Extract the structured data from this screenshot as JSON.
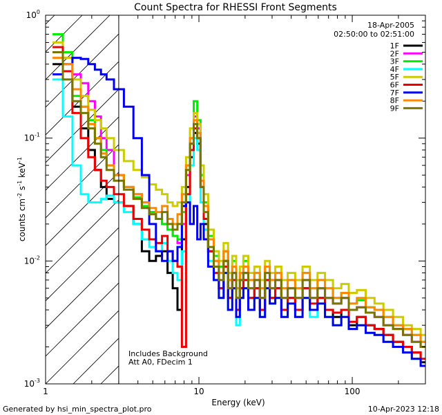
{
  "chart_data": {
    "type": "line",
    "title": "Count Spectra for RHESSI Front Segments",
    "xlabel": "Energy (keV)",
    "ylabel_base": "counts cm",
    "ylabel_exp1": "-2",
    "ylabel_mid": " s",
    "ylabel_exp2": "-1",
    "ylabel_end": " keV",
    "ylabel_exp3": "-1",
    "xscale": "log",
    "yscale": "log",
    "xlim": [
      1.0,
      300.0
    ],
    "ylim": [
      0.001,
      1.0
    ],
    "x_ticks": [
      {
        "value": 1,
        "label": "1"
      },
      {
        "value": 10,
        "label": "10"
      },
      {
        "value": 100,
        "label": "100"
      }
    ],
    "y_ticks": [
      {
        "value": 1.0,
        "base": "10",
        "exp": "0"
      },
      {
        "value": 0.1,
        "base": "10",
        "exp": "-1"
      },
      {
        "value": 0.01,
        "base": "10",
        "exp": "-2"
      },
      {
        "value": 0.001,
        "base": "10",
        "exp": "-3"
      }
    ],
    "hatched_region_x": [
      1.0,
      3.0
    ],
    "date": "18-Apr-2005",
    "time_range": "02:50:00 to 02:51:00",
    "annotation_line1": "Includes Background",
    "annotation_line2": "Att A0, FDecim 1",
    "energy_keV": [
      1.2,
      1.4,
      1.6,
      1.8,
      2.0,
      2.2,
      2.4,
      2.6,
      3.0,
      3.5,
      4.0,
      4.5,
      5.0,
      5.5,
      6.0,
      6.5,
      7.0,
      7.5,
      8.0,
      8.5,
      9.0,
      9.5,
      10.0,
      10.5,
      11.0,
      12.0,
      13.0,
      14.0,
      15.0,
      16.0,
      17.0,
      18.0,
      19.0,
      20.0,
      22.0,
      24.0,
      26.0,
      28.0,
      30.0,
      33.0,
      36.0,
      40.0,
      45.0,
      50.0,
      56.0,
      63.0,
      70.0,
      80.0,
      90.0,
      100.0,
      115.0,
      130.0,
      150.0,
      170.0,
      200.0,
      230.0,
      260.0,
      300.0
    ],
    "series": [
      {
        "name": "1F",
        "color": "#000000",
        "values": [
          0.4,
          0.35,
          0.18,
          0.12,
          0.08,
          0.055,
          0.04,
          0.032,
          0.03,
          0.028,
          0.02,
          0.012,
          0.01,
          0.011,
          0.012,
          0.008,
          0.006,
          0.004,
          0.015,
          0.04,
          0.07,
          0.11,
          0.09,
          0.04,
          0.02,
          0.012,
          0.008,
          0.006,
          0.01,
          0.005,
          0.008,
          0.004,
          0.006,
          0.008,
          0.005,
          0.006,
          0.004,
          0.007,
          0.005,
          0.006,
          0.004,
          0.005,
          0.004,
          0.006,
          0.004,
          0.005,
          0.004,
          0.0035,
          0.004,
          0.003,
          0.0035,
          0.003,
          0.0028,
          0.0025,
          0.0022,
          0.002,
          0.0018,
          0.0015
        ]
      },
      {
        "name": "2F",
        "color": "#ff00ff",
        "values": [
          0.5,
          0.45,
          0.33,
          0.28,
          0.2,
          0.15,
          0.1,
          0.08,
          0.05,
          0.04,
          0.035,
          0.03,
          0.025,
          0.022,
          0.02,
          0.018,
          0.016,
          0.014,
          0.02,
          0.05,
          0.09,
          0.15,
          0.12,
          0.05,
          0.03,
          0.015,
          0.01,
          0.008,
          0.012,
          0.006,
          0.009,
          0.005,
          0.007,
          0.009,
          0.006,
          0.007,
          0.005,
          0.008,
          0.006,
          0.007,
          0.005,
          0.006,
          0.005,
          0.007,
          0.005,
          0.006,
          0.005,
          0.0045,
          0.005,
          0.004,
          0.0042,
          0.0038,
          0.0035,
          0.003,
          0.0028,
          0.0025,
          0.0022,
          0.002
        ]
      },
      {
        "name": "3F",
        "color": "#00ee00",
        "values": [
          0.7,
          0.5,
          0.22,
          0.18,
          0.14,
          0.1,
          0.08,
          0.06,
          0.05,
          0.04,
          0.033,
          0.028,
          0.025,
          0.022,
          0.02,
          0.018,
          0.016,
          0.015,
          0.025,
          0.06,
          0.1,
          0.2,
          0.14,
          0.05,
          0.03,
          0.016,
          0.011,
          0.009,
          0.012,
          0.007,
          0.01,
          0.006,
          0.008,
          0.01,
          0.007,
          0.008,
          0.006,
          0.009,
          0.007,
          0.008,
          0.006,
          0.007,
          0.006,
          0.008,
          0.006,
          0.007,
          0.006,
          0.005,
          0.0055,
          0.0045,
          0.0048,
          0.0042,
          0.004,
          0.0035,
          0.003,
          0.0028,
          0.0025,
          0.0022
        ]
      },
      {
        "name": "4F",
        "color": "#00ffff",
        "values": [
          0.3,
          0.15,
          0.06,
          0.035,
          0.03,
          0.03,
          0.032,
          0.034,
          0.03,
          0.025,
          0.02,
          0.015,
          0.013,
          0.012,
          0.014,
          0.01,
          0.008,
          0.007,
          0.012,
          0.03,
          0.06,
          0.1,
          0.08,
          0.03,
          0.018,
          0.01,
          0.007,
          0.005,
          0.008,
          0.004,
          0.006,
          0.003,
          0.005,
          0.006,
          0.004,
          0.005,
          0.0035,
          0.006,
          0.0045,
          0.005,
          0.0035,
          0.0045,
          0.0035,
          0.005,
          0.0035,
          0.0045,
          0.0035,
          0.003,
          0.0035,
          0.0028,
          0.003,
          0.0026,
          0.0025,
          0.0022,
          0.002,
          0.0018,
          0.0016,
          0.0014
        ]
      },
      {
        "name": "5F",
        "color": "#cccc00",
        "values": [
          0.6,
          0.45,
          0.3,
          0.22,
          0.17,
          0.14,
          0.12,
          0.1,
          0.08,
          0.065,
          0.055,
          0.048,
          0.042,
          0.038,
          0.035,
          0.03,
          0.028,
          0.03,
          0.04,
          0.07,
          0.12,
          0.16,
          0.13,
          0.06,
          0.035,
          0.018,
          0.012,
          0.01,
          0.014,
          0.008,
          0.011,
          0.007,
          0.009,
          0.011,
          0.008,
          0.009,
          0.007,
          0.01,
          0.008,
          0.009,
          0.007,
          0.008,
          0.007,
          0.009,
          0.007,
          0.008,
          0.007,
          0.006,
          0.0065,
          0.0055,
          0.0058,
          0.005,
          0.0045,
          0.004,
          0.0035,
          0.003,
          0.0028,
          0.0025
        ]
      },
      {
        "name": "6F",
        "color": "#ee0000",
        "values": [
          0.55,
          0.35,
          0.16,
          0.1,
          0.07,
          0.055,
          0.045,
          0.04,
          0.035,
          0.028,
          0.022,
          0.018,
          0.015,
          0.014,
          0.016,
          0.012,
          0.01,
          0.009,
          0.002,
          0.035,
          0.08,
          0.12,
          0.1,
          0.04,
          0.022,
          0.012,
          0.008,
          0.006,
          0.009,
          0.005,
          0.007,
          0.004,
          0.006,
          0.007,
          0.005,
          0.006,
          0.004,
          0.007,
          0.005,
          0.006,
          0.004,
          0.005,
          0.004,
          0.006,
          0.0045,
          0.005,
          0.004,
          0.0038,
          0.004,
          0.0032,
          0.0035,
          0.003,
          0.0028,
          0.0025,
          0.0022,
          0.002,
          0.0018,
          0.0016
        ]
      },
      {
        "name": "7F",
        "color": "#0000ee",
        "values": [
          0.33,
          0.4,
          0.45,
          0.44,
          0.4,
          0.36,
          0.33,
          0.3,
          0.25,
          0.18,
          0.1,
          0.05,
          0.02,
          0.012,
          0.01,
          0.012,
          0.01,
          0.013,
          0.028,
          0.03,
          0.02,
          0.028,
          0.015,
          0.02,
          0.015,
          0.009,
          0.007,
          0.005,
          0.008,
          0.004,
          0.006,
          0.0035,
          0.005,
          0.006,
          0.004,
          0.005,
          0.0035,
          0.006,
          0.0045,
          0.005,
          0.0035,
          0.0045,
          0.0035,
          0.005,
          0.004,
          0.0045,
          0.0035,
          0.003,
          0.0035,
          0.0028,
          0.003,
          0.0026,
          0.0025,
          0.0022,
          0.002,
          0.0018,
          0.0016,
          0.0014
        ]
      },
      {
        "name": "8F",
        "color": "#ff8800",
        "values": [
          0.45,
          0.4,
          0.25,
          0.18,
          0.13,
          0.1,
          0.075,
          0.06,
          0.05,
          0.04,
          0.035,
          0.03,
          0.027,
          0.025,
          0.028,
          0.022,
          0.02,
          0.024,
          0.035,
          0.06,
          0.1,
          0.14,
          0.11,
          0.045,
          0.028,
          0.015,
          0.01,
          0.008,
          0.012,
          0.007,
          0.009,
          0.006,
          0.008,
          0.009,
          0.007,
          0.008,
          0.006,
          0.009,
          0.007,
          0.008,
          0.006,
          0.007,
          0.006,
          0.008,
          0.006,
          0.007,
          0.006,
          0.005,
          0.0055,
          0.0045,
          0.005,
          0.0042,
          0.004,
          0.0035,
          0.003,
          0.0028,
          0.0025,
          0.0022
        ]
      },
      {
        "name": "9F",
        "color": "#777700",
        "values": [
          0.5,
          0.3,
          0.2,
          0.16,
          0.12,
          0.09,
          0.07,
          0.055,
          0.045,
          0.038,
          0.032,
          0.027,
          0.024,
          0.022,
          0.025,
          0.02,
          0.018,
          0.02,
          0.03,
          0.055,
          0.09,
          0.13,
          0.1,
          0.04,
          0.025,
          0.013,
          0.009,
          0.007,
          0.01,
          0.006,
          0.008,
          0.005,
          0.007,
          0.008,
          0.006,
          0.007,
          0.005,
          0.008,
          0.006,
          0.007,
          0.005,
          0.006,
          0.005,
          0.007,
          0.005,
          0.006,
          0.005,
          0.0045,
          0.005,
          0.004,
          0.0042,
          0.0038,
          0.0035,
          0.003,
          0.0028,
          0.0025,
          0.0022,
          0.002
        ]
      }
    ]
  },
  "footer": {
    "generated_by": "Generated by hsi_min_spectra_plot.pro",
    "timestamp": "10-Apr-2023 12:18"
  }
}
